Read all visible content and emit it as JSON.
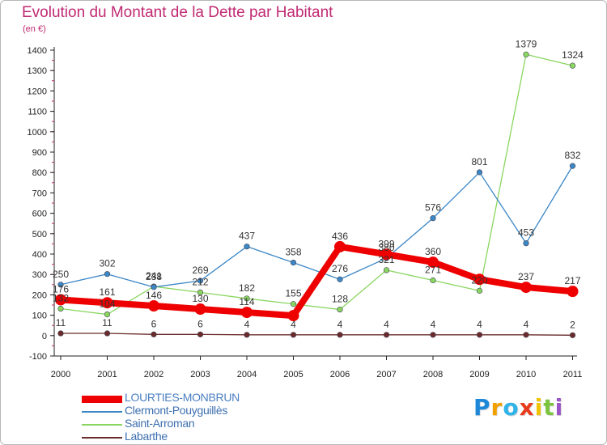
{
  "chart_data": {
    "type": "line",
    "title": "Evolution du Montant de la Dette par Habitant",
    "subtitle": "(en €)",
    "x": [
      "2000",
      "2001",
      "2002",
      "2003",
      "2004",
      "2005",
      "2006",
      "2007",
      "2008",
      "2009",
      "2010",
      "2011"
    ],
    "ylim": [
      -100,
      1400
    ],
    "yticks": [
      -100,
      0,
      100,
      200,
      300,
      400,
      500,
      600,
      700,
      800,
      900,
      1000,
      1100,
      1200,
      1300,
      1400
    ],
    "grid": false,
    "legend_position": "bottom-left",
    "series": [
      {
        "name": "LOURTIES-MONBRUN",
        "color": "#ee0000",
        "values": [
          176,
          161,
          146,
          130,
          114,
          98,
          436,
          399,
          360,
          276,
          237,
          217
        ],
        "labels": [
          "176",
          "161",
          "146",
          "130",
          "114",
          "",
          "436",
          "399",
          "360",
          "",
          "237",
          "217"
        ],
        "emphasis": true
      },
      {
        "name": "Clermont-Pouyguillès",
        "color": "#3c87c6",
        "values": [
          250,
          302,
          238,
          269,
          437,
          358,
          276,
          380,
          576,
          801,
          453,
          832
        ],
        "labels": [
          "250",
          "302",
          "238",
          "269",
          "437",
          "358",
          "276",
          "380",
          "576",
          "801",
          "453",
          "832"
        ]
      },
      {
        "name": "Saint-Arroman",
        "color": "#8ad660",
        "values": [
          132,
          104,
          241,
          212,
          182,
          155,
          128,
          321,
          271,
          220,
          1379,
          1324
        ],
        "labels": [
          "132",
          "104",
          "241",
          "212",
          "182",
          "155",
          "128",
          "321",
          "271",
          "220",
          "1379",
          "1324"
        ]
      },
      {
        "name": "Labarthe",
        "color": "#6b2b2b",
        "values": [
          11,
          11,
          6,
          6,
          4,
          4,
          4,
          4,
          4,
          4,
          4,
          2
        ],
        "labels": [
          "11",
          "11",
          "6",
          "6",
          "4",
          "4",
          "4",
          "4",
          "4",
          "4",
          "4",
          "2"
        ]
      }
    ]
  },
  "logo": {
    "letters": [
      "P",
      "r",
      "o",
      "x",
      "i",
      "t",
      "i"
    ],
    "colors": [
      "#1e88d8",
      "#f2a000",
      "#2fb3e8",
      "#e83a1d",
      "#f2c300",
      "#7cc43f",
      "#9a55c8"
    ]
  }
}
